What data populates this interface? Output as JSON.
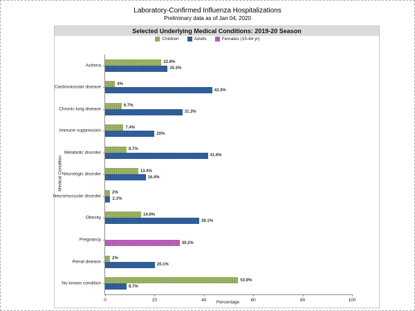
{
  "page": {
    "title": "Laboratory-Confirmed Influenza Hospitalizations",
    "subtitle": "Preliminary data as of Jan 04, 2020",
    "banner": "Selected Underlying Medical Conditions: 2019-20 Season"
  },
  "colors": {
    "children": "#9CB364",
    "adults": "#31609B",
    "females": "#BB60BC",
    "banner_bg": "#D5D5D5",
    "axis": "#8A8A8A"
  },
  "chart_data": {
    "type": "bar",
    "orientation": "horizontal",
    "title": "Selected Underlying Medical Conditions: 2019-20 Season",
    "xlabel": "Percentage",
    "ylabel": "Medical Condition",
    "xlim": [
      0,
      100
    ],
    "xticks": [
      0,
      20,
      40,
      60,
      80,
      100
    ],
    "grid": false,
    "legend_position": "top-center",
    "legend": [
      {
        "name": "Children",
        "color": "#9CB364"
      },
      {
        "name": "Adults",
        "color": "#31609B"
      },
      {
        "name": "Females (15-44 yr)",
        "color": "#BB60BC"
      }
    ],
    "categories": [
      "Asthma",
      "Cardiovascular disease",
      "Chronic lung disease",
      "Immune suppression",
      "Metabolic disorder",
      "Neurologic disorder",
      "Neuromuscular disorder",
      "Obesity",
      "Pregnancy",
      "Renal disease",
      "No known condition"
    ],
    "series": [
      {
        "name": "Children",
        "values": [
          22.8,
          4,
          6.7,
          7.4,
          8.7,
          13.4,
          2,
          14.6,
          null,
          2,
          53.9
        ],
        "labels": [
          "22.8%",
          "4%",
          "6.7%",
          "7.4%",
          "8.7%",
          "13.4%",
          "2%",
          "14.6%",
          null,
          "2%",
          "53.9%"
        ]
      },
      {
        "name": "Adults",
        "values": [
          25.3,
          43.3,
          31.3,
          20,
          41.6,
          16.4,
          2.1,
          38.1,
          null,
          20.1,
          8.7
        ],
        "labels": [
          "25.3%",
          "43.3%",
          "31.3%",
          "20%",
          "41.6%",
          "16.4%",
          "2.1%",
          "38.1%",
          null,
          "20.1%",
          "8.7%"
        ]
      },
      {
        "name": "Females (15-44 yr)",
        "values": [
          null,
          null,
          null,
          null,
          null,
          null,
          null,
          null,
          30.2,
          null,
          null
        ],
        "labels": [
          null,
          null,
          null,
          null,
          null,
          null,
          null,
          null,
          "30.2%",
          null,
          null
        ]
      }
    ]
  }
}
